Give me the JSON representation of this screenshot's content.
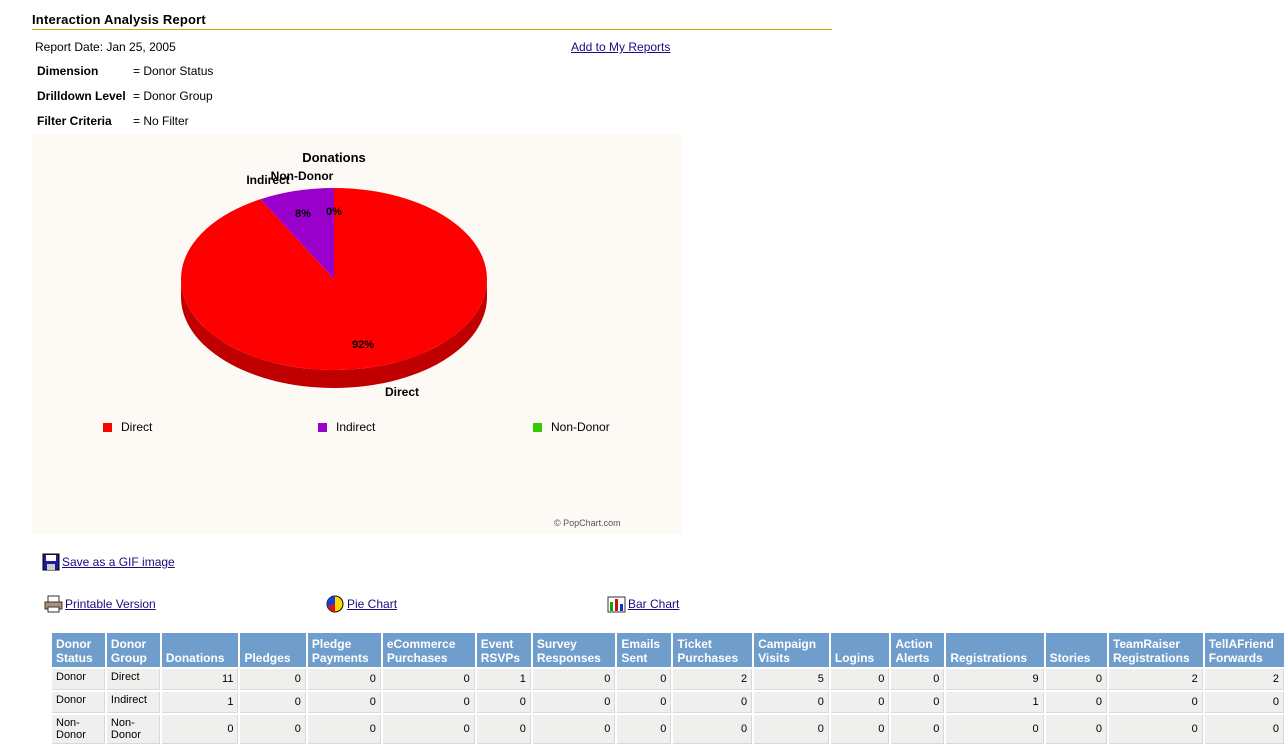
{
  "report": {
    "title": "Interaction Analysis Report",
    "date_label": "Report Date: Jan 25, 2005",
    "add_link": "Add to My Reports"
  },
  "meta": [
    {
      "key": "Dimension",
      "value": "= Donor Status"
    },
    {
      "key": "Drilldown Level",
      "value": "= Donor Group"
    },
    {
      "key": "Filter Criteria",
      "value": "= No Filter"
    }
  ],
  "chart_data": {
    "type": "pie",
    "title": "Donations",
    "categories": [
      "Direct",
      "Indirect",
      "Non-Donor"
    ],
    "values": [
      92,
      8,
      0
    ],
    "value_labels": [
      "92%",
      "8%",
      "0%"
    ],
    "colors": [
      "#ff0000",
      "#9900cc",
      "#33cc00"
    ],
    "legend_position": "bottom",
    "credit": "© PopChart.com"
  },
  "tools": {
    "save_gif": "Save as a GIF image",
    "printable": "Printable Version",
    "pie_chart": "Pie Chart",
    "bar_chart": "Bar Chart"
  },
  "table": {
    "headers": [
      [
        "Donor",
        "Status"
      ],
      [
        "Donor",
        "Group"
      ],
      [
        "",
        "Donations"
      ],
      [
        "",
        "Pledges"
      ],
      [
        "Pledge",
        "Payments"
      ],
      [
        "eCommerce",
        "Purchases"
      ],
      [
        "Event",
        "RSVPs"
      ],
      [
        "Survey",
        "Responses"
      ],
      [
        "Emails",
        "Sent"
      ],
      [
        "Ticket",
        "Purchases"
      ],
      [
        "Campaign",
        "Visits"
      ],
      [
        "",
        "Logins"
      ],
      [
        "Action",
        "Alerts"
      ],
      [
        "",
        "Registrations"
      ],
      [
        "",
        "Stories"
      ],
      [
        "TeamRaiser",
        "Registrations"
      ],
      [
        "TellAFriend",
        "Forwards"
      ]
    ],
    "rows": [
      [
        [
          "Donor"
        ],
        [
          "Direct"
        ],
        "11",
        "0",
        "0",
        "0",
        "1",
        "0",
        "0",
        "2",
        "5",
        "0",
        "0",
        "9",
        "0",
        "2",
        "2"
      ],
      [
        [
          "Donor"
        ],
        [
          "Indirect"
        ],
        "1",
        "0",
        "0",
        "0",
        "0",
        "0",
        "0",
        "0",
        "0",
        "0",
        "0",
        "1",
        "0",
        "0",
        "0"
      ],
      [
        [
          "Non-",
          "Donor"
        ],
        [
          "Non-",
          "Donor"
        ],
        "0",
        "0",
        "0",
        "0",
        "0",
        "0",
        "0",
        "0",
        "0",
        "0",
        "0",
        "0",
        "0",
        "0",
        "0"
      ]
    ]
  }
}
